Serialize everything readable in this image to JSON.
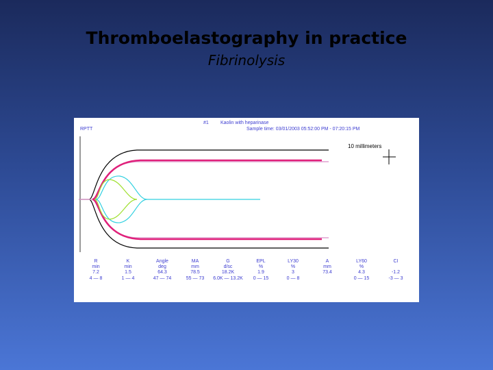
{
  "header": {
    "title": "Thromboelastography in practice",
    "subtitle": "Fibrinolysis"
  },
  "tracing": {
    "sample_label": "#1",
    "sample_type": "Kaolin with heparinase",
    "sample_time": "Sample time: 03/01/2003 05:52:00 PM - 07:20:15 PM",
    "channel": "RPTT",
    "scale_label": "10 millimeters",
    "parameters": [
      {
        "name": "R",
        "unit": "min",
        "value": "7.2",
        "range": "4 — 8"
      },
      {
        "name": "K",
        "unit": "min",
        "value": "1.5",
        "range": "1 — 4"
      },
      {
        "name": "Angle",
        "unit": "deg",
        "value": "64.3",
        "range": "47 — 74"
      },
      {
        "name": "MA",
        "unit": "mm",
        "value": "78.5",
        "range": "55 — 73"
      },
      {
        "name": "G",
        "unit": "d/sc",
        "value": "18.2K",
        "range": "6.0K — 13.2K"
      },
      {
        "name": "EPL",
        "unit": "%",
        "value": "1.9",
        "range": "0 — 15"
      },
      {
        "name": "LY30",
        "unit": "%",
        "value": "3",
        "range": "0 — 8"
      },
      {
        "name": "A",
        "unit": "mm",
        "value": "73.4"
      },
      {
        "name": "LY60",
        "unit": "%",
        "value": "4.3",
        "range": "0 — 15"
      },
      {
        "name": "CI",
        "value": "-1.2",
        "range": "-3 — 3"
      }
    ]
  }
}
